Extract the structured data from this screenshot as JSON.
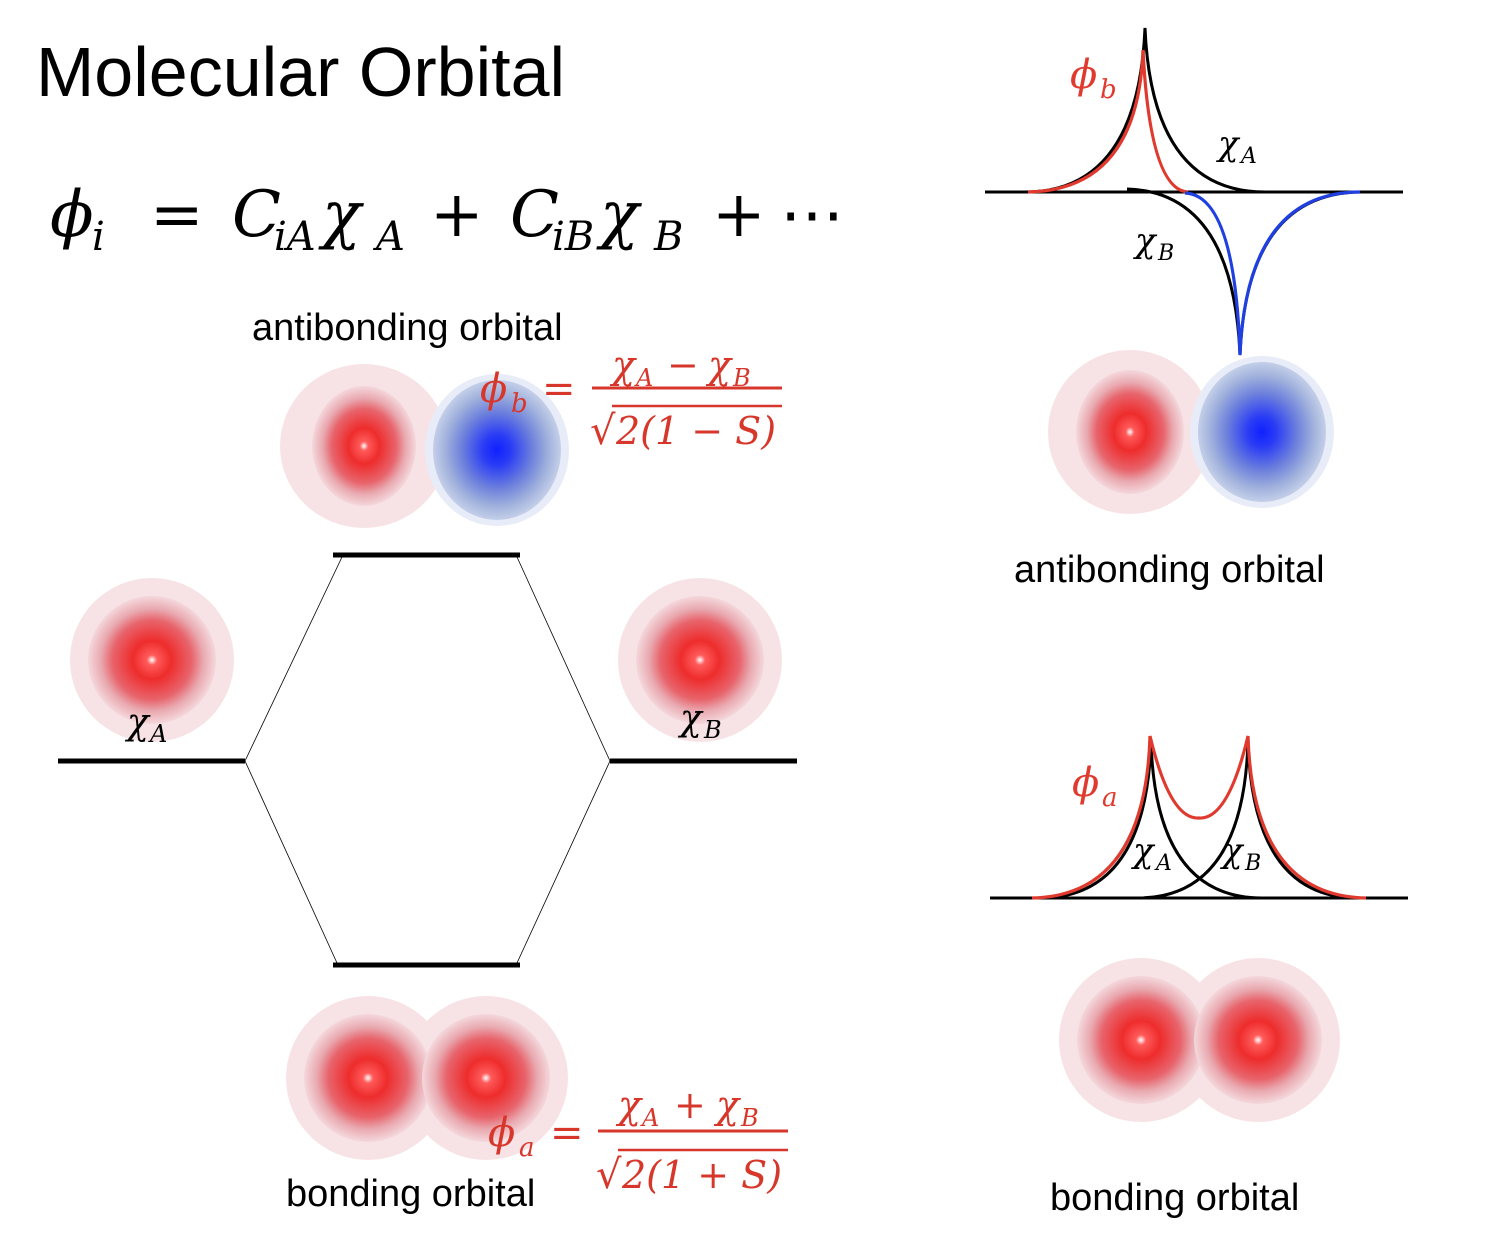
{
  "title": "Molecular Orbital",
  "equation": {
    "lhs": "ϕ",
    "lhs_sub": "i",
    "equals": "=",
    "c1": "C",
    "c1_sub": "iA",
    "chi1": "χ",
    "chi1_sub": "A",
    "plus1": "+",
    "c2": "C",
    "c2_sub": "iB",
    "chi2": "χ",
    "chi2_sub": "B",
    "plus2": "+",
    "ellipsis": "⋯"
  },
  "energy_diagram": {
    "antibonding_label": "antibonding orbital",
    "bonding_label": "bonding orbital",
    "chi_a_label": "χ",
    "chi_a_sub": "A",
    "chi_b_label": "χ",
    "chi_b_sub": "B",
    "phi_b": {
      "symbol": "ϕ",
      "sub": "b",
      "equals": "=",
      "numerator": "χ_A − χ_B",
      "numerator_parts": {
        "chi1": "χ",
        "sub1": "A",
        "op": "−",
        "chi2": "χ",
        "sub2": "B"
      },
      "denominator_radical": "√",
      "denominator": "2(1 − S)"
    },
    "phi_a": {
      "symbol": "ϕ",
      "sub": "a",
      "equals": "=",
      "numerator": "χ_A + χ_B",
      "numerator_parts": {
        "chi1": "χ",
        "sub1": "A",
        "op": "+",
        "chi2": "χ",
        "sub2": "B"
      },
      "denominator_radical": "√",
      "denominator": "2(1 + S)"
    }
  },
  "antibonding_panel": {
    "label": "antibonding orbital",
    "phi_symbol": "ϕ",
    "phi_sub": "b",
    "chi_a": "χ",
    "chi_a_sub": "A",
    "chi_b": "χ",
    "chi_b_sub": "B"
  },
  "bonding_panel": {
    "label": "bonding orbital",
    "phi_symbol": "ϕ",
    "phi_sub": "a",
    "chi_a": "χ",
    "chi_a_sub": "A",
    "chi_b": "χ",
    "chi_b_sub": "B"
  },
  "colors": {
    "positive_lobe": "#e8242a",
    "negative_lobe": "#1a2cf0",
    "phi_curve": "#e03a2e",
    "negative_curve": "#1f3fe0",
    "text": "#000000",
    "formula_red": "#d7372b"
  }
}
